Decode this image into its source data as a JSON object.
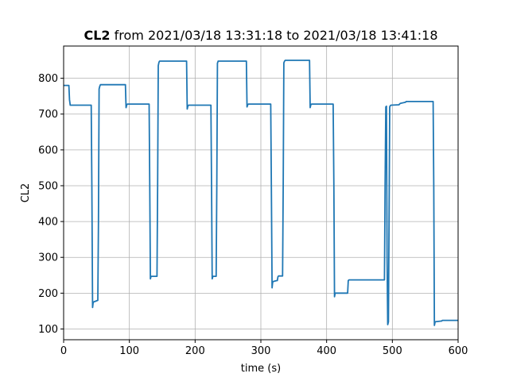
{
  "chart_data": {
    "type": "line",
    "title_bold": "CL2",
    "title_rest": " from 2021/03/18 13:31:18 to 2021/03/18 13:41:18",
    "xlabel": "time (s)",
    "ylabel": "CL2",
    "xlim": [
      0,
      600
    ],
    "ylim": [
      70,
      890
    ],
    "xticks": [
      0,
      100,
      200,
      300,
      400,
      500,
      600
    ],
    "yticks": [
      100,
      200,
      300,
      400,
      500,
      600,
      700,
      800
    ],
    "grid": true,
    "line_color": "#1f77b4",
    "series": [
      {
        "x": [
          0,
          8,
          9,
          10,
          42,
          43,
          44,
          45,
          52,
          53,
          54,
          55,
          56,
          94,
          95,
          96,
          97,
          130,
          131,
          132,
          133,
          142,
          143,
          144,
          145,
          146,
          187,
          188,
          189,
          190,
          224,
          225,
          226,
          227,
          232,
          233,
          234,
          235,
          236,
          278,
          279,
          280,
          281,
          315,
          316,
          317,
          318,
          324,
          325,
          326,
          327,
          333,
          334,
          335,
          336,
          337,
          374,
          375,
          376,
          377,
          410,
          411,
          412,
          413,
          432,
          433,
          434,
          435,
          488,
          489,
          490,
          491,
          492,
          493,
          494,
          495,
          496,
          497,
          498,
          510,
          511,
          512,
          520,
          521,
          562,
          563,
          564,
          565,
          574,
          575,
          576,
          600
        ],
        "y": [
          780,
          780,
          740,
          725,
          725,
          500,
          160,
          175,
          180,
          400,
          770,
          778,
          782,
          782,
          718,
          726,
          728,
          728,
          500,
          240,
          247,
          247,
          500,
          835,
          845,
          848,
          848,
          714,
          722,
          725,
          725,
          500,
          240,
          247,
          247,
          500,
          842,
          848,
          848,
          848,
          720,
          726,
          728,
          728,
          500,
          215,
          232,
          235,
          235,
          246,
          248,
          248,
          500,
          843,
          848,
          850,
          850,
          718,
          726,
          728,
          728,
          500,
          190,
          200,
          200,
          235,
          237,
          237,
          237,
          500,
          720,
          722,
          300,
          112,
          120,
          400,
          720,
          724,
          725,
          726,
          728,
          730,
          733,
          735,
          735,
          500,
          110,
          120,
          122,
          122,
          124,
          124
        ]
      }
    ]
  }
}
